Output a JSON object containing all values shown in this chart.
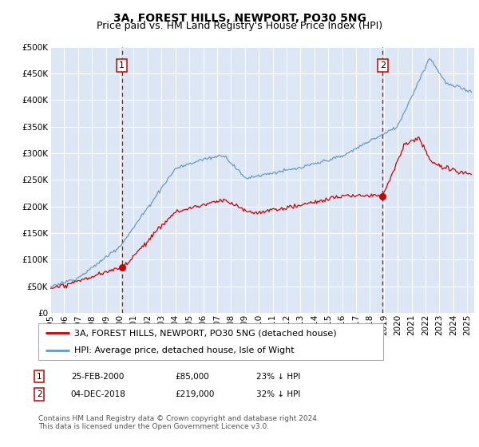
{
  "title": "3A, FOREST HILLS, NEWPORT, PO30 5NG",
  "subtitle": "Price paid vs. HM Land Registry's House Price Index (HPI)",
  "ylim": [
    0,
    500000
  ],
  "yticks": [
    0,
    50000,
    100000,
    150000,
    200000,
    250000,
    300000,
    350000,
    400000,
    450000,
    500000
  ],
  "xlim_start": 1995.0,
  "xlim_end": 2025.5,
  "bg_color": "#dce6f5",
  "grid_color": "#ffffff",
  "red_line_color": "#cc0000",
  "blue_line_color": "#6699cc",
  "marker1_x": 2000.15,
  "marker1_y": 85000,
  "marker2_x": 2018.92,
  "marker2_y": 219000,
  "vline1_x": 2000.15,
  "vline2_x": 2018.92,
  "vline_color": "#cc0000",
  "legend_label_red": "3A, FOREST HILLS, NEWPORT, PO30 5NG (detached house)",
  "legend_label_blue": "HPI: Average price, detached house, Isle of Wight",
  "table_rows": [
    {
      "num": "1",
      "date": "25-FEB-2000",
      "price": "£85,000",
      "hpi": "23% ↓ HPI"
    },
    {
      "num": "2",
      "date": "04-DEC-2018",
      "price": "£219,000",
      "hpi": "32% ↓ HPI"
    }
  ],
  "footer": "Contains HM Land Registry data © Crown copyright and database right 2024.\nThis data is licensed under the Open Government Licence v3.0.",
  "title_fontsize": 10,
  "subtitle_fontsize": 9,
  "tick_fontsize": 7.5,
  "legend_fontsize": 8,
  "footer_fontsize": 6.5
}
